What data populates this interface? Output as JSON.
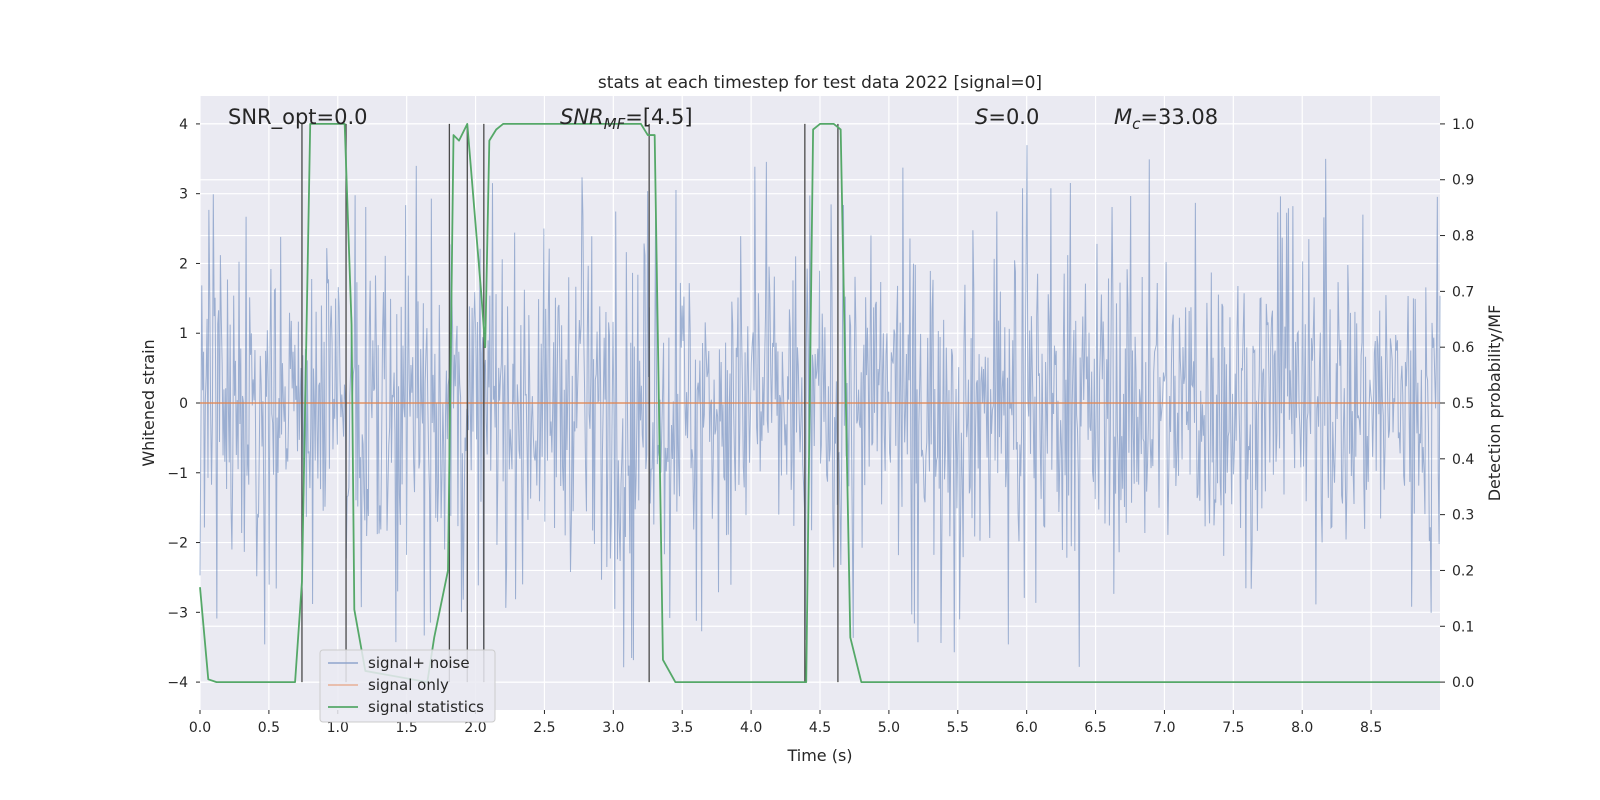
{
  "chart_data": {
    "type": "line",
    "title": "stats at each timestep for test data 2022 [signal=0]",
    "xlabel": "Time (s)",
    "ylabel": "Whitened strain",
    "y2label": "Detection probability/MF",
    "xlim": [
      0.0,
      9.0
    ],
    "ylim": [
      -4.4,
      4.4
    ],
    "y2lim": [
      -0.05,
      1.05
    ],
    "xticks": [
      0.0,
      0.5,
      1.0,
      1.5,
      2.0,
      2.5,
      3.0,
      3.5,
      4.0,
      4.5,
      5.0,
      5.5,
      6.0,
      6.5,
      7.0,
      7.5,
      8.0,
      8.5
    ],
    "xtick_labels": [
      "0.0",
      "0.5",
      "1.0",
      "1.5",
      "2.0",
      "2.5",
      "3.0",
      "3.5",
      "4.0",
      "4.5",
      "5.0",
      "5.5",
      "6.0",
      "6.5",
      "7.0",
      "7.5",
      "8.0",
      "8.5"
    ],
    "yticks": [
      -4,
      -3,
      -2,
      -1,
      0,
      1,
      2,
      3,
      4
    ],
    "ytick_labels": [
      "−4",
      "−3",
      "−2",
      "−1",
      "0",
      "1",
      "2",
      "3",
      "4"
    ],
    "y2ticks": [
      0.0,
      0.1,
      0.2,
      0.3,
      0.4,
      0.5,
      0.6,
      0.7,
      0.8,
      0.9,
      1.0
    ],
    "y2tick_labels": [
      "0.0",
      "0.1",
      "0.2",
      "0.3",
      "0.4",
      "0.5",
      "0.6",
      "0.7",
      "0.8",
      "0.9",
      "1.0"
    ],
    "grid": true,
    "legend_position": "lower-left",
    "annotations": {
      "snr_opt": "SNR_opt=0.0",
      "snr_mf_base": "SNR",
      "snr_mf_sub": "MF",
      "snr_mf_value": "=[4.5]",
      "s_symbol": "S",
      "s_value": "=0.0",
      "mc_base": "M",
      "mc_sub": "c",
      "mc_value": "=33.08"
    },
    "series": [
      {
        "name": "signal+ noise",
        "color": "#4c72b0",
        "axis": "left",
        "description_kind": "noise",
        "t_range": [
          0.0,
          9.0
        ],
        "samples": 1400,
        "core_sigma": 1.1,
        "peak_range": [
          -3.85,
          3.85
        ]
      },
      {
        "name": "signal only",
        "color": "#dd8452",
        "axis": "left",
        "x": [
          0.0,
          9.0
        ],
        "y": [
          0.0,
          0.0
        ]
      },
      {
        "name": "signal statistics",
        "color": "#55a868",
        "axis": "right",
        "x": [
          0.0,
          0.06,
          0.12,
          0.69,
          0.74,
          0.8,
          1.05,
          1.1,
          1.12,
          1.2,
          1.65,
          1.7,
          1.8,
          1.84,
          1.88,
          1.94,
          2.04,
          2.07,
          2.1,
          2.15,
          2.2,
          3.2,
          3.25,
          3.3,
          3.36,
          3.45,
          4.4,
          4.45,
          4.5,
          4.6,
          4.65,
          4.72,
          4.8,
          9.0
        ],
        "y": [
          0.17,
          0.005,
          0.0,
          0.0,
          0.18,
          1.0,
          1.0,
          0.64,
          0.13,
          0.02,
          0.0,
          0.08,
          0.2,
          0.98,
          0.97,
          1.0,
          0.7,
          0.6,
          0.97,
          0.99,
          1.0,
          1.0,
          0.98,
          0.98,
          0.04,
          0.0,
          0.0,
          0.99,
          1.0,
          1.0,
          0.99,
          0.08,
          0.0,
          0.0
        ]
      }
    ],
    "vlines": [
      0.74,
      1.06,
      1.81,
      1.94,
      2.06,
      3.26,
      4.39,
      4.63
    ]
  }
}
